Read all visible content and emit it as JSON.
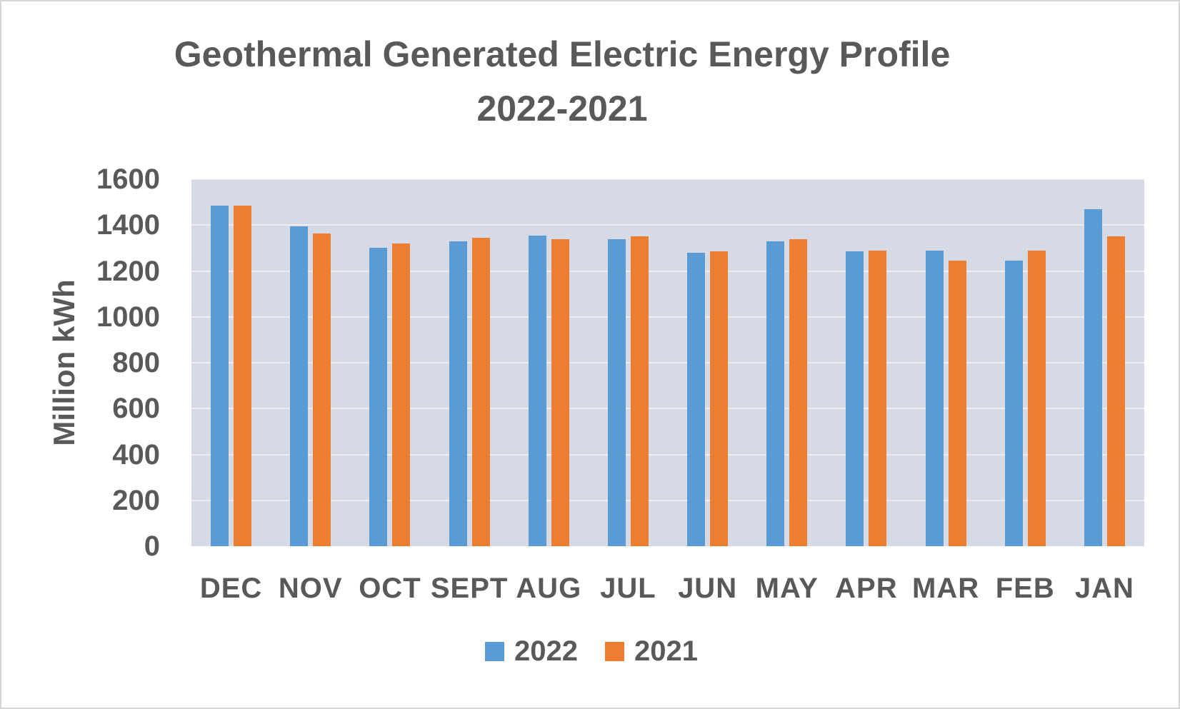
{
  "title": {
    "line1": "Geothermal Generated Electric Energy Profile",
    "line2": "2022-2021"
  },
  "axes": {
    "y_title": "Million kWh"
  },
  "colors": {
    "plot_bg": "#D6DAE4",
    "text": "#595959",
    "gridline": "#F4EEE9",
    "series_2022": "#5B9BD5",
    "series_2021": "#ED7D31"
  },
  "chart_data": {
    "type": "bar",
    "title": "Geothermal Generated Electric Energy Profile 2022-2021",
    "categories": [
      "DEC",
      "NOV",
      "OCT",
      "SEPT",
      "AUG",
      "JUL",
      "JUN",
      "MAY",
      "APR",
      "MAR",
      "FEB",
      "JAN"
    ],
    "series": [
      {
        "name": "2022",
        "color": "#5B9BD5",
        "values": [
          1485,
          1395,
          1300,
          1330,
          1355,
          1340,
          1280,
          1330,
          1285,
          1290,
          1245,
          1470
        ]
      },
      {
        "name": "2021",
        "color": "#ED7D31",
        "values": [
          1485,
          1365,
          1320,
          1345,
          1340,
          1350,
          1285,
          1340,
          1290,
          1245,
          1290,
          1350
        ]
      }
    ],
    "xlabel": "",
    "ylabel": "Million kWh",
    "ylim": [
      0,
      1600
    ],
    "yticks": [
      0,
      200,
      400,
      600,
      800,
      1000,
      1200,
      1400,
      1600
    ],
    "grid": true,
    "legend_position": "bottom"
  }
}
